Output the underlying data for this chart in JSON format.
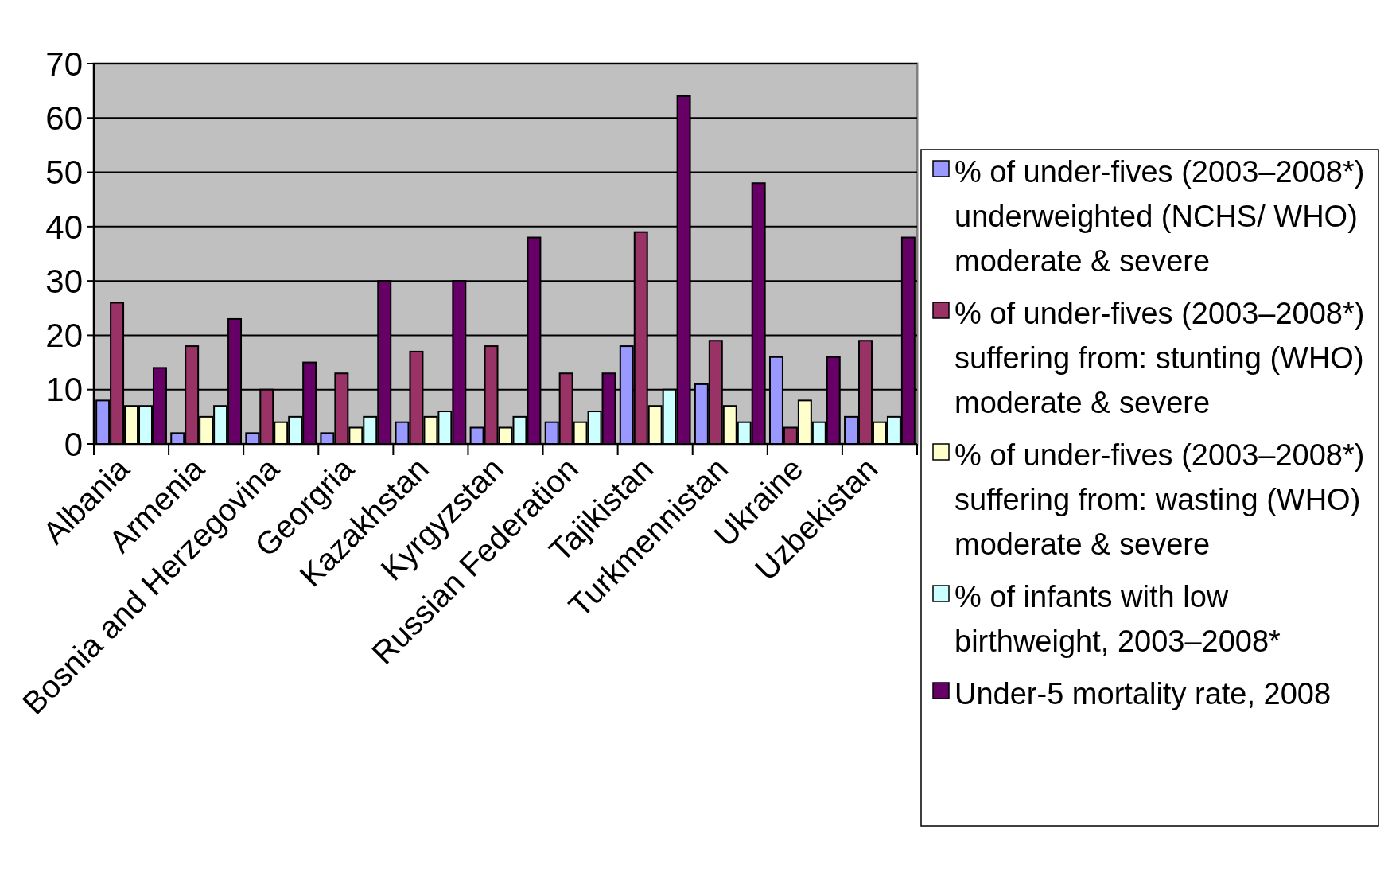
{
  "chart_data": {
    "type": "bar",
    "categories": [
      "Albania",
      "Armenia",
      "Bosnia and Herzegovina",
      "Georgria",
      "Kazakhstan",
      "Kyrgyzstan",
      "Russian Federation",
      "Tajikistan",
      "Turkmennistan",
      "Ukraine",
      "Uzbekistan"
    ],
    "series": [
      {
        "name": "% of under-fives (2003–2008*) underweighted (NCHS/ WHO) moderate & severe",
        "color": "#9999ff",
        "values": [
          8,
          2,
          2,
          2,
          4,
          3,
          4,
          18,
          11,
          16,
          5
        ]
      },
      {
        "name": "% of under-fives (2003–2008*) suffering from: stunting (WHO) moderate & severe",
        "color": "#993366",
        "values": [
          26,
          18,
          10,
          13,
          17,
          18,
          13,
          39,
          19,
          3,
          19
        ]
      },
      {
        "name": "% of under-fives (2003–2008*) suffering from: wasting (WHO) moderate & severe",
        "color": "#ffffcc",
        "values": [
          7,
          5,
          4,
          3,
          5,
          3,
          4,
          7,
          7,
          8,
          4
        ]
      },
      {
        "name": "% of infants with low birthweight, 2003–2008*",
        "color": "#ccffff",
        "values": [
          7,
          7,
          5,
          5,
          6,
          5,
          6,
          10,
          4,
          4,
          5
        ]
      },
      {
        "name": "Under-5 mortality rate, 2008",
        "color": "#660066",
        "values": [
          14,
          23,
          15,
          30,
          30,
          38,
          13,
          64,
          48,
          16,
          38
        ]
      }
    ],
    "ylim": [
      0,
      70
    ],
    "yticks": [
      0,
      10,
      20,
      30,
      40,
      50,
      60,
      70
    ],
    "grid": "y",
    "legend": "right"
  }
}
